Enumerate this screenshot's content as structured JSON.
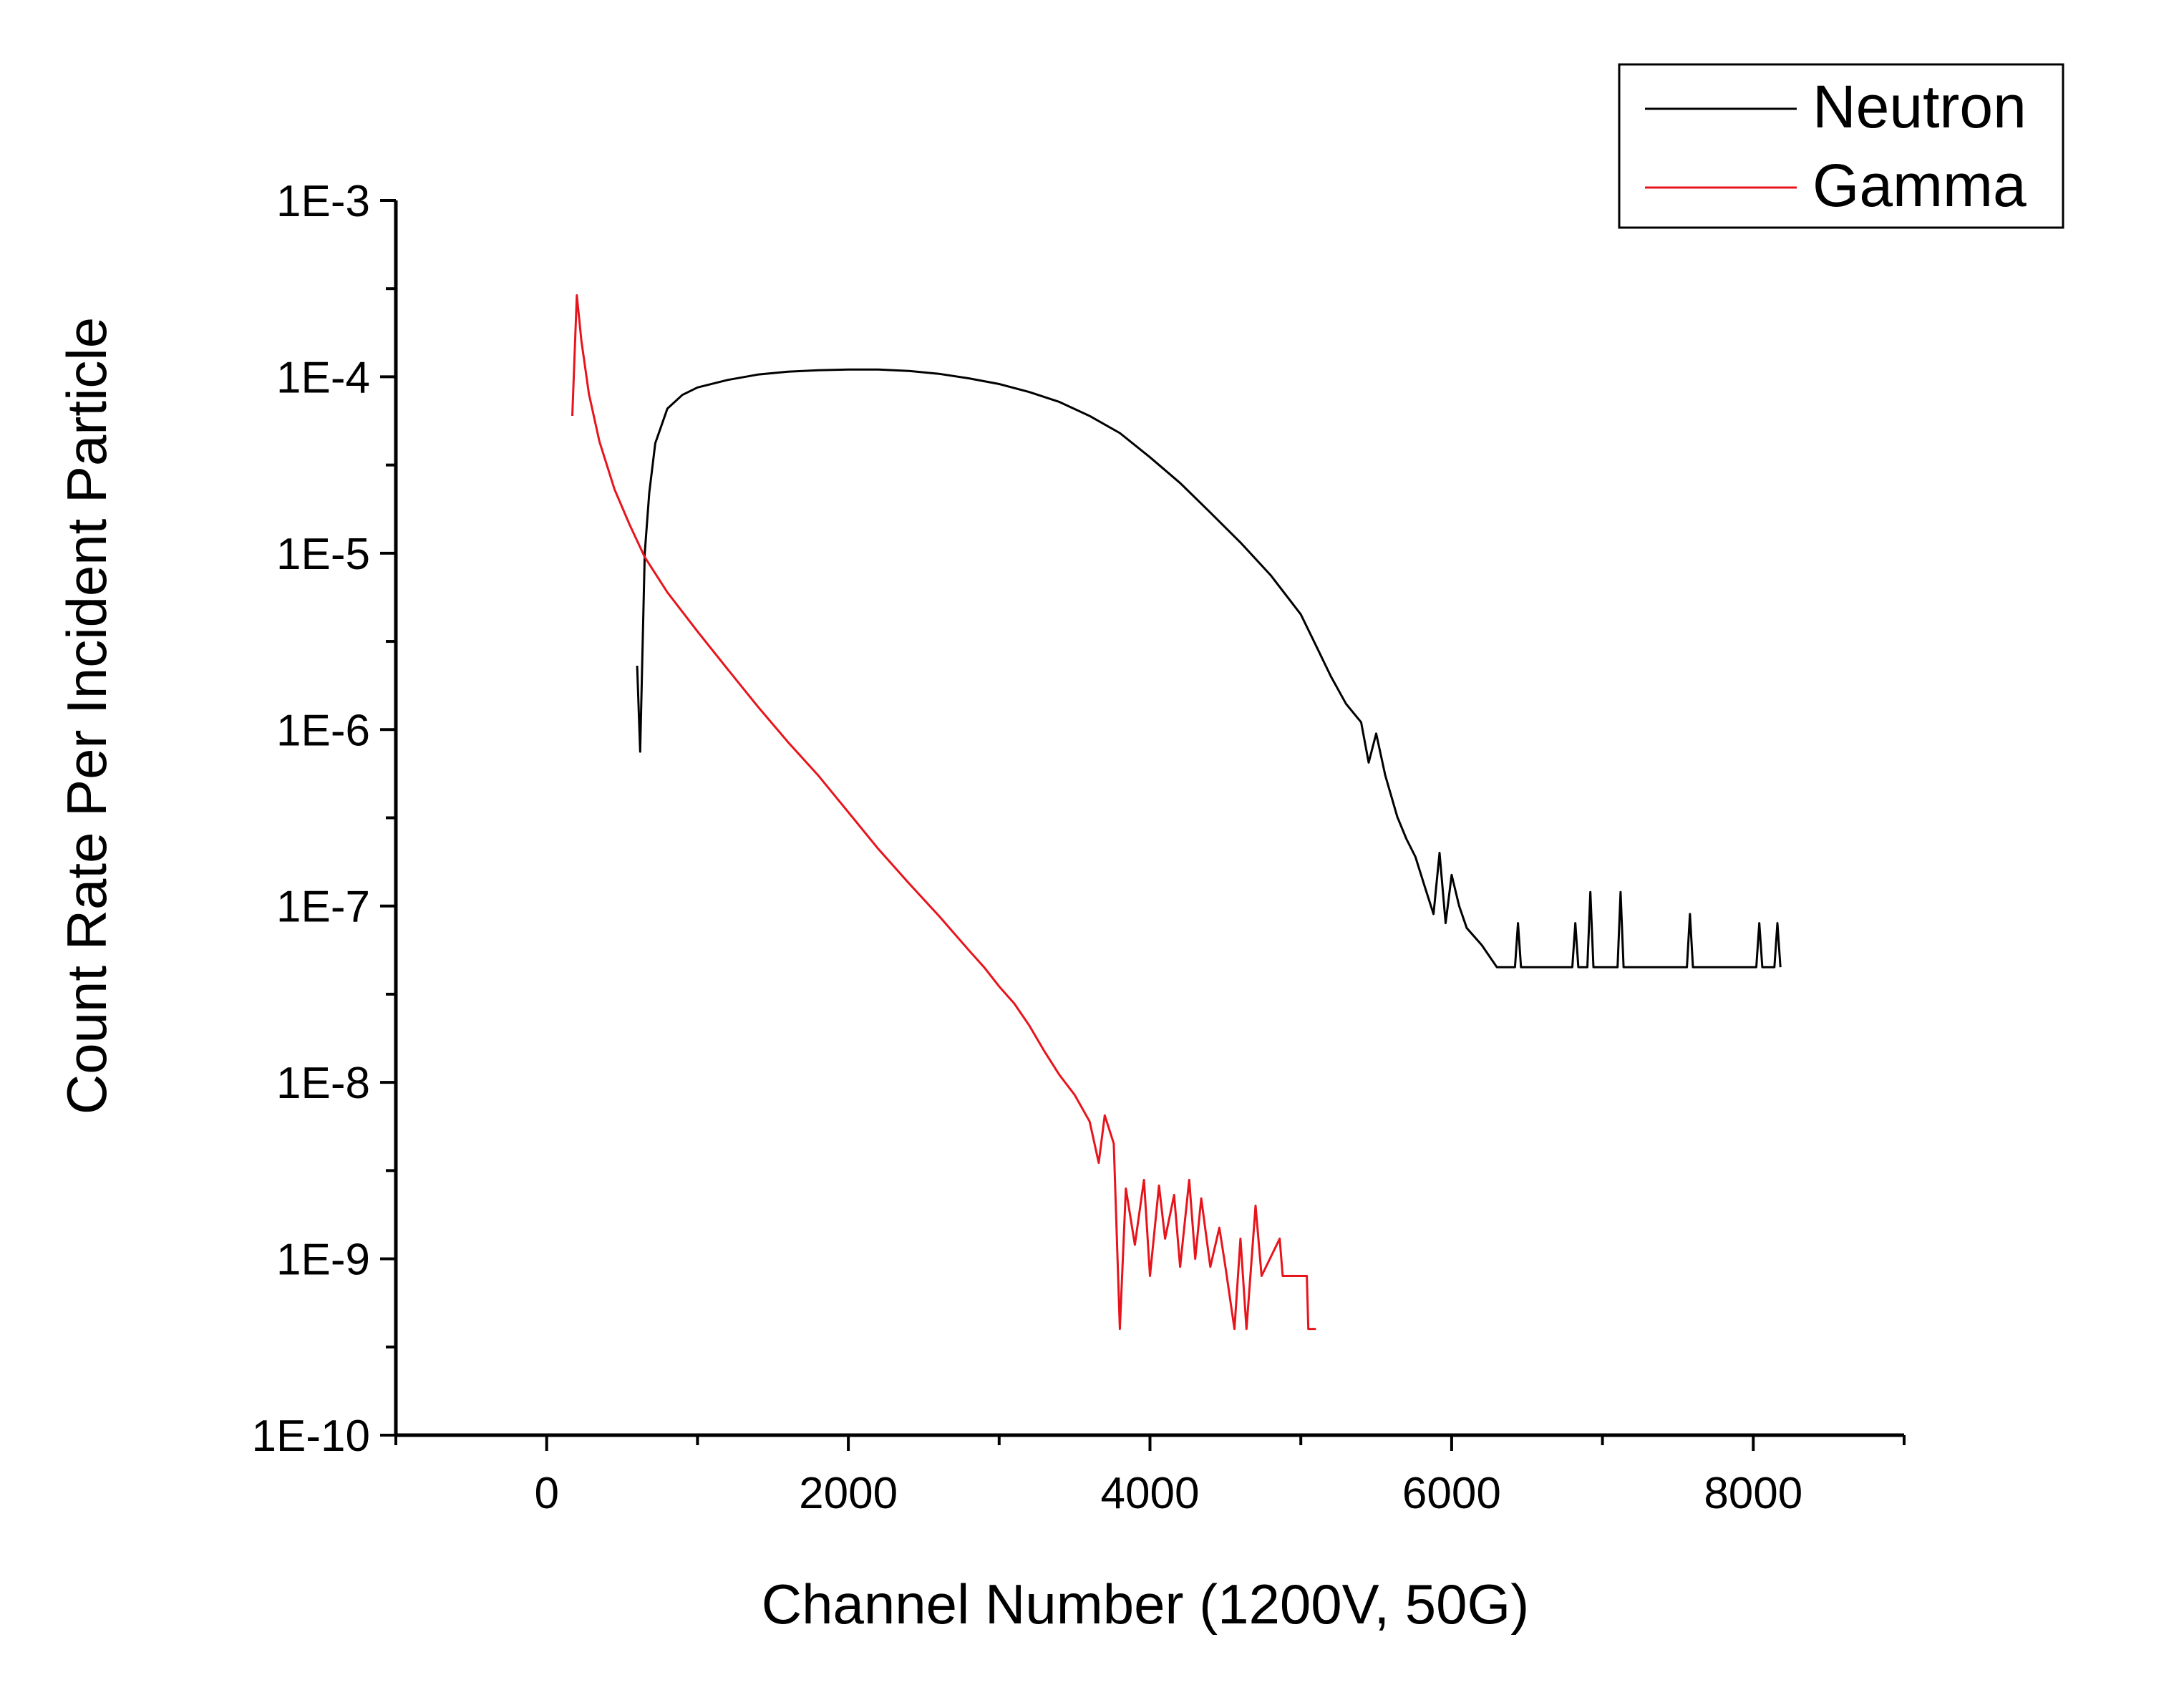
{
  "chart_data": {
    "type": "line",
    "xlabel": "Channel Number (1200V, 50G)",
    "ylabel": "Count Rate Per Incident Particle",
    "xlim": [
      -1000,
      9000
    ],
    "ylim": [
      1e-10,
      0.001
    ],
    "yscale": "log",
    "x_ticks": [
      0,
      2000,
      4000,
      6000,
      8000
    ],
    "x_tick_labels": [
      "0",
      "2000",
      "4000",
      "6000",
      "8000"
    ],
    "y_ticks": [
      0.001,
      0.0001,
      1e-05,
      1e-06,
      1e-07,
      1e-08,
      1e-09,
      1e-10
    ],
    "y_tick_labels": [
      "1E-3",
      "1E-4",
      "1E-5",
      "1E-6",
      "1E-7",
      "1E-8",
      "1E-9",
      "1E-10"
    ],
    "legend": {
      "position": "top-right"
    },
    "grid": false,
    "series": [
      {
        "name": "Neutron",
        "color": "#000000",
        "points": [
          [
            600,
            2.3e-06
          ],
          [
            620,
            7.5e-07
          ],
          [
            650,
            1e-05
          ],
          [
            680,
            2.2e-05
          ],
          [
            720,
            4.2e-05
          ],
          [
            800,
            6.6e-05
          ],
          [
            900,
            7.9e-05
          ],
          [
            1000,
            8.7e-05
          ],
          [
            1200,
            9.6e-05
          ],
          [
            1400,
            0.000103
          ],
          [
            1600,
            0.000107
          ],
          [
            1800,
            0.000109
          ],
          [
            2000,
            0.00011
          ],
          [
            2200,
            0.00011
          ],
          [
            2400,
            0.000108
          ],
          [
            2600,
            0.000104
          ],
          [
            2800,
            9.8e-05
          ],
          [
            3000,
            9.1e-05
          ],
          [
            3200,
            8.2e-05
          ],
          [
            3400,
            7.2e-05
          ],
          [
            3600,
            6e-05
          ],
          [
            3800,
            4.8e-05
          ],
          [
            4000,
            3.5e-05
          ],
          [
            4200,
            2.5e-05
          ],
          [
            4400,
            1.7e-05
          ],
          [
            4600,
            1.15e-05
          ],
          [
            4800,
            7.5e-06
          ],
          [
            5000,
            4.5e-06
          ],
          [
            5100,
            3e-06
          ],
          [
            5200,
            2e-06
          ],
          [
            5300,
            1.4e-06
          ],
          [
            5400,
            1.1e-06
          ],
          [
            5450,
            6.5e-07
          ],
          [
            5500,
            9.5e-07
          ],
          [
            5560,
            5.5e-07
          ],
          [
            5640,
            3.2e-07
          ],
          [
            5700,
            2.4e-07
          ],
          [
            5760,
            1.9e-07
          ],
          [
            5820,
            1.3e-07
          ],
          [
            5880,
            9e-08
          ],
          [
            5920,
            2e-07
          ],
          [
            5960,
            8e-08
          ],
          [
            6000,
            1.5e-07
          ],
          [
            6050,
            1e-07
          ],
          [
            6100,
            7.5e-08
          ],
          [
            6200,
            6e-08
          ],
          [
            6300,
            4.5e-08
          ],
          [
            6420,
            4.5e-08
          ],
          [
            6440,
            8e-08
          ],
          [
            6460,
            4.5e-08
          ],
          [
            6800,
            4.5e-08
          ],
          [
            6820,
            8e-08
          ],
          [
            6840,
            4.5e-08
          ],
          [
            6900,
            4.5e-08
          ],
          [
            6920,
            1.2e-07
          ],
          [
            6940,
            4.5e-08
          ],
          [
            7100,
            4.5e-08
          ],
          [
            7120,
            1.2e-07
          ],
          [
            7140,
            4.5e-08
          ],
          [
            7560,
            4.5e-08
          ],
          [
            7580,
            9e-08
          ],
          [
            7600,
            4.5e-08
          ],
          [
            8020,
            4.5e-08
          ],
          [
            8040,
            8e-08
          ],
          [
            8060,
            4.5e-08
          ],
          [
            8140,
            4.5e-08
          ],
          [
            8160,
            8e-08
          ],
          [
            8180,
            4.5e-08
          ]
        ]
      },
      {
        "name": "Gamma",
        "color": "#e8141c",
        "points": [
          [
            170,
            6e-05
          ],
          [
            200,
            0.00029
          ],
          [
            230,
            0.00016
          ],
          [
            280,
            8e-05
          ],
          [
            350,
            4.3e-05
          ],
          [
            450,
            2.3e-05
          ],
          [
            550,
            1.45e-05
          ],
          [
            650,
            9.5e-06
          ],
          [
            800,
            6e-06
          ],
          [
            1000,
            3.6e-06
          ],
          [
            1200,
            2.2e-06
          ],
          [
            1400,
            1.35e-06
          ],
          [
            1600,
            8.5e-07
          ],
          [
            1800,
            5.5e-07
          ],
          [
            2000,
            3.4e-07
          ],
          [
            2200,
            2.1e-07
          ],
          [
            2400,
            1.35e-07
          ],
          [
            2600,
            8.8e-08
          ],
          [
            2800,
            5.6e-08
          ],
          [
            2900,
            4.5e-08
          ],
          [
            3000,
            3.5e-08
          ],
          [
            3100,
            2.8e-08
          ],
          [
            3200,
            2.1e-08
          ],
          [
            3300,
            1.5e-08
          ],
          [
            3400,
            1.1e-08
          ],
          [
            3500,
            8.5e-09
          ],
          [
            3600,
            6e-09
          ],
          [
            3660,
            3.5e-09
          ],
          [
            3700,
            6.5e-09
          ],
          [
            3760,
            4.5e-09
          ],
          [
            3800,
            4e-10
          ],
          [
            3840,
            2.5e-09
          ],
          [
            3900,
            1.2e-09
          ],
          [
            3960,
            2.8e-09
          ],
          [
            4000,
            8e-10
          ],
          [
            4060,
            2.6e-09
          ],
          [
            4100,
            1.3e-09
          ],
          [
            4160,
            2.3e-09
          ],
          [
            4200,
            9e-10
          ],
          [
            4260,
            2.8e-09
          ],
          [
            4300,
            1e-09
          ],
          [
            4340,
            2.2e-09
          ],
          [
            4400,
            9e-10
          ],
          [
            4460,
            1.5e-09
          ],
          [
            4500,
            9e-10
          ],
          [
            4560,
            4e-10
          ],
          [
            4600,
            1.3e-09
          ],
          [
            4640,
            4e-10
          ],
          [
            4700,
            2e-09
          ],
          [
            4740,
            8e-10
          ],
          [
            4860,
            1.3e-09
          ],
          [
            4880,
            8e-10
          ],
          [
            5040,
            8e-10
          ],
          [
            5050,
            4e-10
          ],
          [
            5100,
            4e-10
          ]
        ]
      }
    ]
  }
}
